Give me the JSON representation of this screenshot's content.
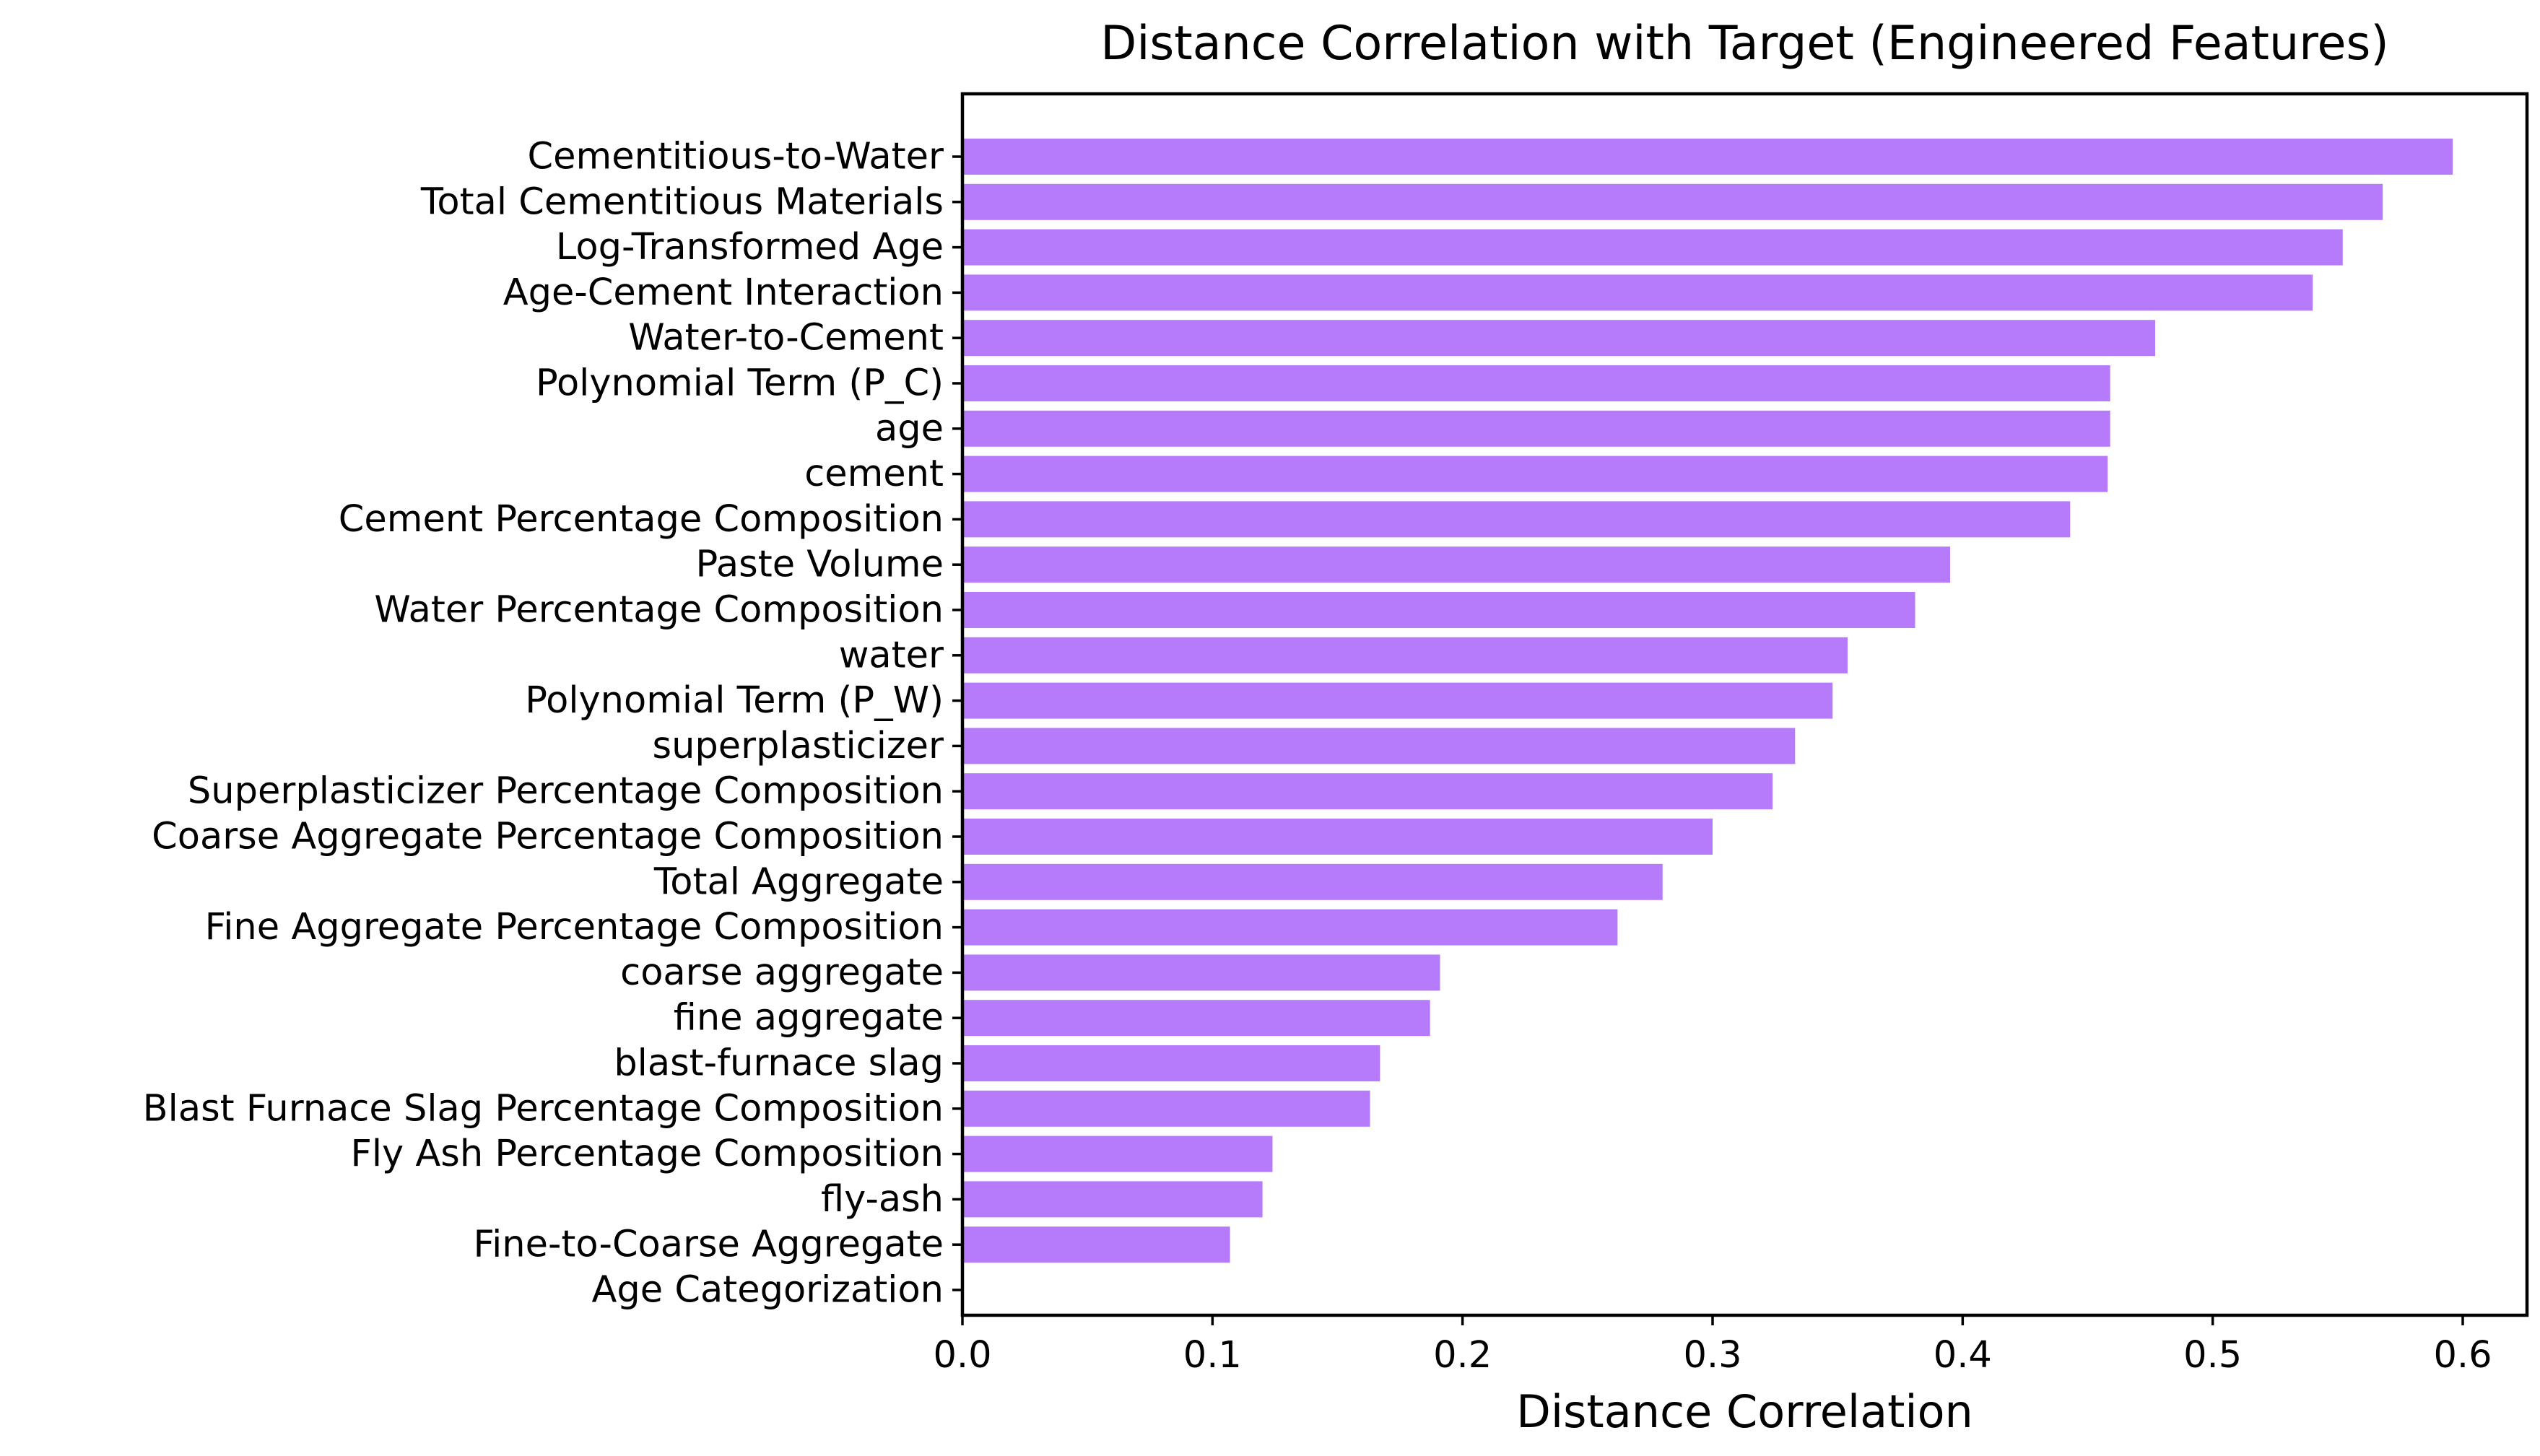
{
  "chart_data": {
    "type": "bar",
    "orientation": "horizontal",
    "title": "Distance Correlation with Target (Engineered Features)",
    "xlabel": "Distance Correlation",
    "ylabel": "",
    "xlim": [
      0,
      0.625
    ],
    "xticks": [
      0.0,
      0.1,
      0.2,
      0.3,
      0.4,
      0.5,
      0.6
    ],
    "xtick_labels": [
      "0.0",
      "0.1",
      "0.2",
      "0.3",
      "0.4",
      "0.5",
      "0.6"
    ],
    "grid": false,
    "bar_color": "#b57bfa",
    "categories": [
      "Cementitious-to-Water",
      "Total Cementitious Materials",
      "Log-Transformed Age",
      "Age-Cement Interaction",
      "Water-to-Cement",
      "Polynomial Term (P_C)",
      "age",
      "cement",
      "Cement Percentage Composition",
      "Paste Volume",
      "Water Percentage Composition",
      "water",
      "Polynomial Term (P_W)",
      "superplasticizer",
      "Superplasticizer Percentage Composition",
      "Coarse Aggregate Percentage Composition",
      "Total Aggregate",
      "Fine Aggregate Percentage Composition",
      "coarse aggregate",
      "fine aggregate",
      "blast-furnace slag",
      "Blast Furnace Slag Percentage Composition",
      "Fly Ash Percentage Composition",
      "fly-ash",
      "Fine-to-Coarse Aggregate",
      "Age Categorization"
    ],
    "values": [
      0.596,
      0.568,
      0.552,
      0.54,
      0.477,
      0.459,
      0.459,
      0.458,
      0.443,
      0.395,
      0.381,
      0.354,
      0.348,
      0.333,
      0.324,
      0.3,
      0.28,
      0.262,
      0.191,
      0.187,
      0.167,
      0.163,
      0.124,
      0.12,
      0.107,
      0.0
    ]
  }
}
